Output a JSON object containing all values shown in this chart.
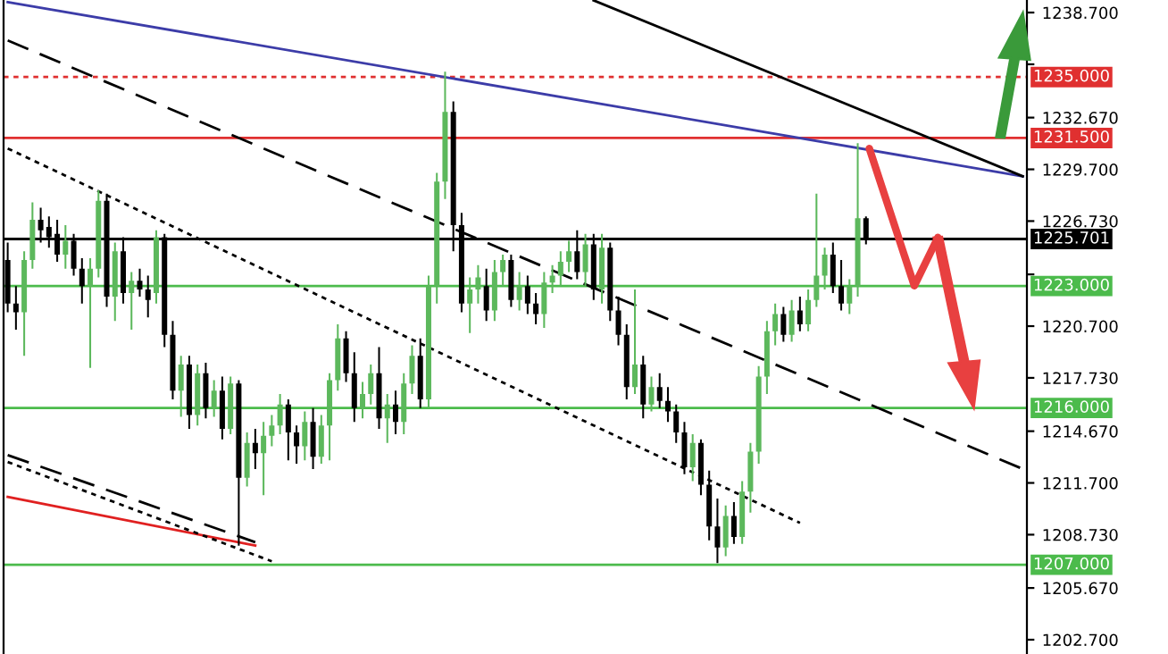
{
  "chart_data": {
    "type": "candlestick",
    "categories": [
      null,
      null,
      null,
      null,
      null,
      null,
      null,
      null,
      null,
      null,
      null,
      null,
      null,
      null,
      null,
      null,
      null,
      null,
      null,
      null,
      null,
      null,
      null,
      null,
      null,
      null,
      null,
      null,
      null,
      null,
      null,
      null,
      null,
      null,
      null,
      null,
      null,
      null,
      null,
      null,
      null,
      null,
      null,
      null,
      null,
      null,
      null,
      null,
      null,
      null,
      null,
      null,
      null,
      null,
      null,
      null,
      null,
      null,
      null,
      null,
      null,
      null,
      null,
      null,
      null,
      null,
      null,
      null,
      null,
      null,
      null,
      null,
      null,
      null,
      null,
      null,
      null,
      null,
      null,
      null,
      null,
      null,
      null,
      null,
      null,
      null,
      null,
      null,
      null,
      null,
      null,
      null,
      null,
      null,
      null,
      null,
      null,
      null,
      null,
      null,
      null,
      null,
      null,
      null,
      null,
      null,
      null,
      null,
      null,
      null,
      null,
      null,
      null,
      null,
      null,
      null,
      null,
      null,
      null,
      null,
      null,
      null,
      null,
      null
    ],
    "ohlc": [
      [
        1224.5,
        1225.5,
        1221.5,
        1222.0
      ],
      [
        1222.0,
        1223.0,
        1220.5,
        1221.5
      ],
      [
        1221.5,
        1225.0,
        1219.0,
        1224.5
      ],
      [
        1224.5,
        1227.8,
        1224.0,
        1226.8
      ],
      [
        1226.8,
        1227.5,
        1225.5,
        1226.2
      ],
      [
        1226.4,
        1227.0,
        1225.2,
        1225.8
      ],
      [
        1226.0,
        1226.8,
        1224.4,
        1224.8
      ],
      [
        1224.8,
        1226.5,
        1224.0,
        1225.6
      ],
      [
        1225.6,
        1226.0,
        1223.6,
        1224.0
      ],
      [
        1224.0,
        1224.6,
        1222.0,
        1223.0
      ],
      [
        1223.0,
        1224.6,
        1218.3,
        1224.0
      ],
      [
        1224.0,
        1228.5,
        1223.5,
        1227.9
      ],
      [
        1227.9,
        1228.3,
        1221.8,
        1222.4
      ],
      [
        1222.4,
        1225.5,
        1221.0,
        1225.0
      ],
      [
        1225.0,
        1225.8,
        1222.0,
        1222.6
      ],
      [
        1222.6,
        1223.8,
        1220.5,
        1223.3
      ],
      [
        1223.3,
        1224.0,
        1222.4,
        1222.8
      ],
      [
        1222.8,
        1223.6,
        1221.2,
        1222.2
      ],
      [
        1222.6,
        1226.2,
        1222.0,
        1225.8
      ],
      [
        1225.8,
        1226.0,
        1219.5,
        1220.2
      ],
      [
        1220.2,
        1221.0,
        1216.5,
        1217.0
      ],
      [
        1217.0,
        1219.0,
        1215.5,
        1218.5
      ],
      [
        1218.5,
        1219.0,
        1214.8,
        1215.6
      ],
      [
        1215.6,
        1218.5,
        1215.0,
        1218.0
      ],
      [
        1218.0,
        1218.6,
        1215.4,
        1216.0
      ],
      [
        1216.0,
        1217.6,
        1215.5,
        1217.0
      ],
      [
        1217.0,
        1217.8,
        1214.2,
        1214.8
      ],
      [
        1214.8,
        1217.8,
        1214.5,
        1217.4
      ],
      [
        1217.4,
        1217.6,
        1208.1,
        1212.0
      ],
      [
        1212.0,
        1214.6,
        1211.5,
        1214.0
      ],
      [
        1214.0,
        1214.8,
        1212.5,
        1213.4
      ],
      [
        1213.4,
        1215.2,
        1211.0,
        1214.4
      ],
      [
        1214.4,
        1215.6,
        1213.8,
        1215.0
      ],
      [
        1215.0,
        1216.8,
        1214.5,
        1216.2
      ],
      [
        1216.2,
        1216.5,
        1213.0,
        1214.6
      ],
      [
        1214.6,
        1215.0,
        1212.8,
        1213.8
      ],
      [
        1213.8,
        1215.8,
        1213.0,
        1215.2
      ],
      [
        1215.2,
        1216.0,
        1212.5,
        1213.2
      ],
      [
        1213.2,
        1215.6,
        1212.8,
        1215.0
      ],
      [
        1215.0,
        1218.0,
        1213.0,
        1217.6
      ],
      [
        1217.6,
        1220.8,
        1217.0,
        1220.0
      ],
      [
        1220.0,
        1220.4,
        1217.5,
        1218.0
      ],
      [
        1218.0,
        1219.2,
        1215.2,
        1216.0
      ],
      [
        1216.0,
        1217.5,
        1215.4,
        1216.8
      ],
      [
        1216.8,
        1218.5,
        1216.2,
        1218.0
      ],
      [
        1218.0,
        1219.5,
        1214.8,
        1215.4
      ],
      [
        1215.4,
        1216.8,
        1214.0,
        1216.2
      ],
      [
        1216.2,
        1217.0,
        1214.5,
        1215.2
      ],
      [
        1215.2,
        1218.0,
        1214.5,
        1217.4
      ],
      [
        1217.4,
        1219.6,
        1216.8,
        1219.0
      ],
      [
        1219.0,
        1220.0,
        1216.0,
        1216.5
      ],
      [
        1216.5,
        1223.6,
        1216.0,
        1223.0
      ],
      [
        1223.0,
        1229.5,
        1222.0,
        1229.0
      ],
      [
        1229.0,
        1235.3,
        1228.0,
        1233.0
      ],
      [
        1233.0,
        1233.6,
        1225.0,
        1226.5
      ],
      [
        1226.5,
        1227.2,
        1221.5,
        1222.0
      ],
      [
        1222.0,
        1223.5,
        1220.3,
        1222.8
      ],
      [
        1222.8,
        1224.2,
        1222.0,
        1223.5
      ],
      [
        1223.0,
        1224.0,
        1221.0,
        1221.6
      ],
      [
        1221.6,
        1224.5,
        1221.0,
        1223.8
      ],
      [
        1223.8,
        1224.8,
        1223.0,
        1224.5
      ],
      [
        1224.5,
        1224.8,
        1221.8,
        1222.2
      ],
      [
        1222.2,
        1223.8,
        1221.6,
        1223.0
      ],
      [
        1223.0,
        1223.6,
        1221.4,
        1222.0
      ],
      [
        1222.0,
        1222.6,
        1220.8,
        1221.4
      ],
      [
        1221.4,
        1223.8,
        1220.6,
        1223.2
      ],
      [
        1223.2,
        1224.2,
        1222.6,
        1223.6
      ],
      [
        1223.6,
        1225.0,
        1223.0,
        1224.4
      ],
      [
        1224.4,
        1225.6,
        1223.8,
        1225.0
      ],
      [
        1225.0,
        1226.2,
        1223.4,
        1223.8
      ],
      [
        1223.8,
        1226.0,
        1223.0,
        1225.4
      ],
      [
        1225.4,
        1226.0,
        1222.2,
        1222.8
      ],
      [
        1222.8,
        1226.0,
        1222.0,
        1225.2
      ],
      [
        1225.2,
        1225.5,
        1221.0,
        1221.6
      ],
      [
        1221.6,
        1222.4,
        1219.6,
        1220.2
      ],
      [
        1220.2,
        1220.8,
        1216.5,
        1217.2
      ],
      [
        1217.2,
        1222.8,
        1216.8,
        1218.5
      ],
      [
        1218.5,
        1219.0,
        1215.4,
        1216.2
      ],
      [
        1216.2,
        1217.8,
        1215.8,
        1217.2
      ],
      [
        1217.2,
        1218.0,
        1216.0,
        1216.4
      ],
      [
        1216.4,
        1217.2,
        1215.2,
        1215.8
      ],
      [
        1215.8,
        1216.2,
        1214.0,
        1214.6
      ],
      [
        1214.6,
        1215.2,
        1212.2,
        1212.6
      ],
      [
        1212.6,
        1214.5,
        1211.8,
        1214.0
      ],
      [
        1214.0,
        1214.2,
        1211.0,
        1211.6
      ],
      [
        1211.6,
        1212.4,
        1208.4,
        1209.2
      ],
      [
        1209.2,
        1210.8,
        1207.1,
        1208.0
      ],
      [
        1208.0,
        1210.4,
        1207.5,
        1209.8
      ],
      [
        1209.8,
        1210.6,
        1208.2,
        1208.6
      ],
      [
        1208.6,
        1211.8,
        1208.2,
        1211.2
      ],
      [
        1211.2,
        1214.0,
        1210.0,
        1213.5
      ],
      [
        1213.5,
        1218.4,
        1212.8,
        1217.8
      ],
      [
        1217.8,
        1221.0,
        1216.8,
        1220.4
      ],
      [
        1220.4,
        1222.0,
        1219.6,
        1221.4
      ],
      [
        1221.4,
        1221.8,
        1219.8,
        1220.2
      ],
      [
        1220.2,
        1222.2,
        1219.8,
        1221.6
      ],
      [
        1221.6,
        1222.4,
        1220.4,
        1220.8
      ],
      [
        1220.8,
        1222.8,
        1220.4,
        1222.2
      ],
      [
        1222.2,
        1228.3,
        1221.8,
        1223.6
      ],
      [
        1223.6,
        1225.2,
        1222.8,
        1224.8
      ],
      [
        1224.8,
        1225.5,
        1222.6,
        1223.0
      ],
      [
        1223.0,
        1224.5,
        1221.6,
        1222.0
      ],
      [
        1222.0,
        1223.4,
        1221.4,
        1223.0
      ],
      [
        1223.0,
        1231.2,
        1222.4,
        1226.9
      ],
      [
        1226.9,
        1227.0,
        1225.4,
        1225.701
      ],
      null,
      null,
      null,
      null,
      null,
      null,
      null,
      null,
      null,
      null,
      null,
      null,
      null,
      null,
      null,
      null,
      null,
      null,
      null
    ],
    "colors": [
      "#000000",
      "#000000",
      "#5cb85c",
      "#5cb85c",
      "#000000",
      "#000000",
      "#000000",
      "#5cb85c",
      "#000000",
      "#000000",
      "#5cb85c",
      "#5cb85c",
      "#000000",
      "#5cb85c",
      "#000000",
      "#5cb85c",
      "#000000",
      "#000000",
      "#5cb85c",
      "#000000",
      "#000000",
      "#5cb85c",
      "#000000",
      "#5cb85c",
      "#000000",
      "#5cb85c",
      "#000000",
      "#5cb85c",
      "#000000",
      "#5cb85c",
      "#000000",
      "#5cb85c",
      "#5cb85c",
      "#5cb85c",
      "#000000",
      "#000000",
      "#5cb85c",
      "#000000",
      "#5cb85c",
      "#5cb85c",
      "#5cb85c",
      "#000000",
      "#000000",
      "#5cb85c",
      "#5cb85c",
      "#000000",
      "#5cb85c",
      "#000000",
      "#5cb85c",
      "#5cb85c",
      "#000000",
      "#5cb85c",
      "#5cb85c",
      "#5cb85c",
      "#000000",
      "#000000",
      "#5cb85c",
      "#5cb85c",
      "#000000",
      "#5cb85c",
      "#5cb85c",
      "#000000",
      "#5cb85c",
      "#000000",
      "#000000",
      "#5cb85c",
      "#5cb85c",
      "#5cb85c",
      "#5cb85c",
      "#000000",
      "#5cb85c",
      "#000000",
      "#5cb85c",
      "#000000",
      "#000000",
      "#000000",
      "#5cb85c",
      "#000000",
      "#5cb85c",
      "#000000",
      "#000000",
      "#000000",
      "#000000",
      "#5cb85c",
      "#000000",
      "#000000",
      "#000000",
      "#5cb85c",
      "#000000",
      "#5cb85c",
      "#5cb85c",
      "#5cb85c",
      "#5cb85c",
      "#5cb85c",
      "#000000",
      "#5cb85c",
      "#000000",
      "#5cb85c",
      "#5cb85c",
      "#5cb85c",
      "#000000",
      "#000000",
      "#5cb85c",
      "#5cb85c",
      "#000000",
      null,
      null,
      null,
      null,
      null,
      null,
      null,
      null,
      null,
      null,
      null,
      null,
      null,
      null,
      null,
      null,
      null,
      null,
      null
    ],
    "series": [
      {
        "type": "line",
        "color": "#3c3ca8",
        "line_style": "solid",
        "values": [
          1239.3,
          null,
          null,
          null,
          null,
          null,
          null,
          null,
          null,
          null,
          null,
          null,
          null,
          null,
          null,
          null,
          null,
          null,
          null,
          null,
          null,
          null,
          null,
          null,
          null,
          null,
          null,
          null,
          null,
          null,
          null,
          null,
          null,
          null,
          null,
          null,
          null,
          null,
          null,
          null,
          null,
          null,
          null,
          null,
          null,
          null,
          null,
          null,
          null,
          null,
          null,
          null,
          null,
          null,
          null,
          null,
          null,
          null,
          null,
          null,
          null,
          null,
          null,
          null,
          null,
          null,
          null,
          null,
          null,
          null,
          null,
          null,
          null,
          null,
          null,
          null,
          null,
          null,
          null,
          null,
          null,
          null,
          null,
          null,
          null,
          null,
          null,
          null,
          null,
          null,
          null,
          null,
          null,
          null,
          null,
          null,
          null,
          null,
          null,
          null,
          null,
          null,
          null,
          null,
          null,
          null,
          null,
          null,
          null,
          null,
          null,
          null,
          null,
          null,
          null,
          null,
          null,
          null,
          null,
          null,
          null,
          null,
          null,
          1229.3
        ]
      },
      {
        "type": "line",
        "color": "#000000",
        "line_style": "solid",
        "values": [
          null,
          null,
          null,
          null,
          null,
          null,
          null,
          null,
          null,
          null,
          null,
          null,
          null,
          null,
          null,
          null,
          null,
          null,
          null,
          null,
          null,
          null,
          null,
          null,
          null,
          null,
          null,
          null,
          null,
          null,
          null,
          null,
          null,
          null,
          null,
          null,
          null,
          null,
          null,
          null,
          null,
          null,
          null,
          null,
          null,
          null,
          null,
          null,
          null,
          null,
          null,
          null,
          null,
          null,
          null,
          null,
          null,
          null,
          null,
          null,
          null,
          null,
          null,
          null,
          null,
          null,
          null,
          null,
          null,
          null,
          null,
          1239.4,
          null,
          null,
          null,
          null,
          null,
          null,
          null,
          null,
          null,
          null,
          null,
          null,
          null,
          null,
          null,
          null,
          null,
          null,
          null,
          null,
          null,
          null,
          null,
          null,
          null,
          null,
          null,
          null,
          null,
          null,
          null,
          null,
          null,
          null,
          null,
          null,
          null,
          null,
          null,
          null,
          null,
          null,
          null,
          null,
          null,
          null,
          null,
          null,
          null,
          null,
          null,
          1229.3
        ]
      },
      {
        "type": "line",
        "color": "#000000",
        "line_style": "dashed",
        "values": [
          1237.1,
          null,
          null,
          null,
          null,
          null,
          null,
          null,
          null,
          null,
          null,
          null,
          null,
          null,
          null,
          null,
          null,
          null,
          null,
          null,
          null,
          null,
          null,
          null,
          null,
          null,
          null,
          null,
          null,
          null,
          null,
          null,
          null,
          null,
          null,
          null,
          null,
          null,
          null,
          null,
          null,
          null,
          null,
          null,
          null,
          null,
          null,
          null,
          null,
          null,
          null,
          null,
          null,
          null,
          null,
          null,
          null,
          null,
          null,
          null,
          null,
          null,
          null,
          null,
          null,
          null,
          null,
          null,
          null,
          null,
          null,
          null,
          null,
          null,
          null,
          null,
          null,
          null,
          null,
          null,
          null,
          null,
          null,
          null,
          null,
          null,
          null,
          null,
          null,
          null,
          null,
          null,
          null,
          null,
          null,
          null,
          null,
          null,
          null,
          null,
          null,
          null,
          null,
          null,
          null,
          null,
          null,
          null,
          null,
          null,
          null,
          null,
          null,
          null,
          null,
          null,
          null,
          null,
          null,
          null,
          null,
          null,
          null,
          1212.5
        ]
      },
      {
        "type": "line",
        "color": "#000000",
        "line_style": "dotted",
        "values": [
          1230.9,
          null,
          null,
          null,
          null,
          null,
          null,
          null,
          null,
          null,
          null,
          null,
          null,
          null,
          null,
          null,
          null,
          null,
          null,
          null,
          null,
          null,
          null,
          null,
          null,
          null,
          null,
          null,
          null,
          null,
          null,
          null,
          null,
          null,
          null,
          null,
          null,
          null,
          null,
          null,
          null,
          null,
          null,
          null,
          null,
          null,
          null,
          null,
          null,
          null,
          null,
          null,
          null,
          null,
          null,
          null,
          null,
          null,
          null,
          null,
          null,
          null,
          null,
          null,
          null,
          null,
          null,
          null,
          null,
          null,
          null,
          null,
          null,
          null,
          null,
          null,
          null,
          null,
          null,
          null,
          null,
          null,
          null,
          null,
          null,
          null,
          null,
          null,
          null,
          null,
          null,
          null,
          null,
          null,
          null,
          null,
          1209.4,
          null,
          null,
          null,
          null,
          null,
          null,
          null,
          null,
          null,
          null,
          null,
          null,
          null,
          null,
          null,
          null,
          null,
          null,
          null,
          null,
          null,
          null,
          null,
          null,
          null,
          null,
          null
        ]
      },
      {
        "type": "line",
        "color": "#e02020",
        "line_style": "solid",
        "values": [
          1210.9,
          null,
          null,
          null,
          null,
          null,
          null,
          null,
          null,
          null,
          null,
          null,
          null,
          null,
          null,
          null,
          null,
          null,
          null,
          null,
          null,
          null,
          null,
          null,
          null,
          null,
          null,
          null,
          null,
          null,
          1208.1,
          null,
          null,
          null,
          null,
          null,
          null,
          null,
          null,
          null,
          null,
          null,
          null,
          null,
          null,
          null,
          null,
          null,
          null,
          null,
          null,
          null,
          null,
          null,
          null,
          null,
          null,
          null,
          null,
          null,
          null,
          null,
          null,
          null,
          null,
          null,
          null,
          null,
          null,
          null,
          null,
          null,
          null,
          null,
          null,
          null,
          null,
          null,
          null,
          null,
          null,
          null,
          null,
          null,
          null,
          null,
          null,
          null,
          null,
          null,
          null,
          null,
          null,
          null,
          null,
          null,
          null,
          null,
          null,
          null,
          null,
          null,
          null,
          null,
          null,
          null,
          null,
          null,
          null,
          null,
          null,
          null,
          null,
          null,
          null,
          null,
          null,
          null,
          null,
          null,
          null,
          null,
          null,
          null
        ]
      },
      {
        "type": "line",
        "color": "#000000",
        "line_style": "dashed",
        "values": [
          1213.3,
          null,
          null,
          null,
          null,
          null,
          null,
          null,
          null,
          null,
          null,
          null,
          null,
          null,
          null,
          null,
          null,
          null,
          null,
          null,
          null,
          null,
          null,
          null,
          null,
          null,
          null,
          null,
          null,
          null,
          1208.3,
          null,
          null,
          null,
          null,
          null,
          null,
          null,
          null,
          null,
          null,
          null,
          null,
          null,
          null,
          null,
          null,
          null,
          null,
          null,
          null,
          null,
          null,
          null,
          null,
          null,
          null,
          null,
          null,
          null,
          null,
          null,
          null,
          null,
          null,
          null,
          null,
          null,
          null,
          null,
          null,
          null,
          null,
          null,
          null,
          null,
          null,
          null,
          null,
          null,
          null,
          null,
          null,
          null,
          null,
          null,
          null,
          null,
          null,
          null,
          null,
          null,
          null,
          null,
          null,
          null,
          null,
          null,
          null,
          null,
          null,
          null,
          null,
          null,
          null,
          null,
          null,
          null,
          null,
          null,
          null,
          null,
          null,
          null,
          null,
          null,
          null,
          null,
          null,
          null,
          null,
          null,
          null,
          null
        ]
      },
      {
        "type": "line",
        "color": "#000000",
        "line_style": "dotted",
        "values": [
          1212.9,
          null,
          null,
          null,
          null,
          null,
          null,
          null,
          null,
          null,
          null,
          null,
          null,
          null,
          null,
          null,
          null,
          null,
          null,
          null,
          null,
          null,
          null,
          null,
          null,
          null,
          null,
          null,
          null,
          null,
          null,
          null,
          1207.2,
          null,
          null,
          null,
          null,
          null,
          null,
          null,
          null,
          null,
          null,
          null,
          null,
          null,
          null,
          null,
          null,
          null,
          null,
          null,
          null,
          null,
          null,
          null,
          null,
          null,
          null,
          null,
          null,
          null,
          null,
          null,
          null,
          null,
          null,
          null,
          null,
          null,
          null,
          null,
          null,
          null,
          null,
          null,
          null,
          null,
          null,
          null,
          null,
          null,
          null,
          null,
          null,
          null,
          null,
          null,
          null,
          null,
          null,
          null,
          null,
          null,
          null,
          null,
          null,
          null,
          null,
          null,
          null,
          null,
          null,
          null,
          null,
          null,
          null,
          null,
          null,
          null,
          null,
          null,
          null,
          null,
          null,
          null,
          null,
          null,
          null,
          null,
          null,
          null,
          null,
          null
        ]
      }
    ],
    "ref_lines": [
      {
        "axis": "y",
        "value": 1235.0,
        "label": "1235.000",
        "color": "#e03030",
        "line_style": "dotted"
      },
      {
        "axis": "y",
        "value": 1231.5,
        "label": "1231.500",
        "color": "#e03030",
        "line_style": "solid"
      },
      {
        "axis": "y",
        "value": 1225.701,
        "label": "1225.701",
        "color": "#000000",
        "line_style": "solid"
      },
      {
        "axis": "y",
        "value": 1223.0,
        "label": "1223.000",
        "color": "#4cbb4c",
        "line_style": "solid"
      },
      {
        "axis": "y",
        "value": 1216.0,
        "label": "1216.000",
        "color": "#4cbb4c",
        "line_style": "solid"
      },
      {
        "axis": "y",
        "value": 1207.0,
        "label": "1207.000",
        "color": "#4cbb4c",
        "line_style": "solid"
      }
    ],
    "ylim": [
      1201.88,
      1239.42
    ],
    "yticks": [
      {
        "value": 1238.7,
        "label": "1238.700"
      },
      {
        "value": 1235.73,
        "label": null
      },
      {
        "value": 1232.67,
        "label": "1232.670"
      },
      {
        "value": 1229.7,
        "label": "1229.700"
      },
      {
        "value": 1226.73,
        "label": "1226.730"
      },
      {
        "value": 1223.67,
        "label": null
      },
      {
        "value": 1220.7,
        "label": "1220.700"
      },
      {
        "value": 1217.73,
        "label": "1217.730"
      },
      {
        "value": 1214.67,
        "label": "1214.670"
      },
      {
        "value": 1211.7,
        "label": "1211.700"
      },
      {
        "value": 1208.73,
        "label": "1208.730"
      },
      {
        "value": 1205.67,
        "label": "1205.670"
      },
      {
        "value": 1202.7,
        "label": "1202.700"
      }
    ],
    "tick_labels": "y",
    "grid": false,
    "legend": false
  }
}
